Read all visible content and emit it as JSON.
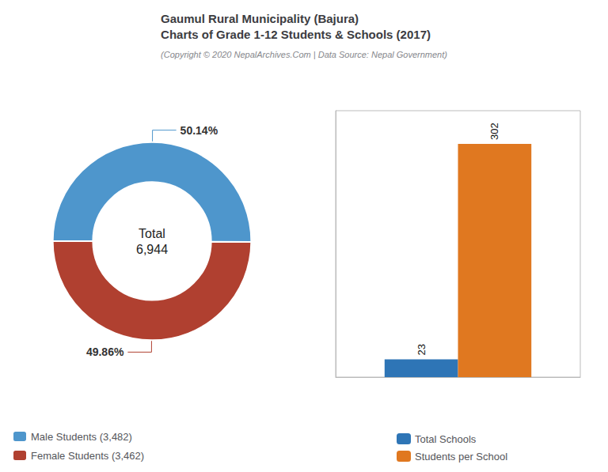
{
  "title": "Gaumul Rural Municipality (Bajura)\nCharts of Grade 1-12 Students & Schools (2017)",
  "subtitle": "(Copyright © 2020 NepalArchives.Com | Data Source: Nepal Government)",
  "chart_data": [
    {
      "type": "donut",
      "categories": [
        "Male Students (3,482)",
        "Female Students (3,462)"
      ],
      "values": [
        50.14,
        49.86
      ],
      "value_labels": [
        "50.14%",
        "49.86%"
      ],
      "colors": [
        "#4e96cc",
        "#b04030"
      ],
      "data_labels": true,
      "legend": "lower left",
      "annotations": [
        "Total\n6,944"
      ]
    },
    {
      "type": "bar",
      "categories": [
        null
      ],
      "series": [
        {
          "name": "Total Schools",
          "color": "#2e75b6",
          "values": [
            23
          ]
        },
        {
          "name": "Students per School",
          "color": "#e07820",
          "values": [
            302
          ]
        }
      ],
      "ylim": [
        0,
        345
      ],
      "data_labels": true,
      "grid": false,
      "tick_labels": false,
      "legend": "bottom"
    }
  ]
}
